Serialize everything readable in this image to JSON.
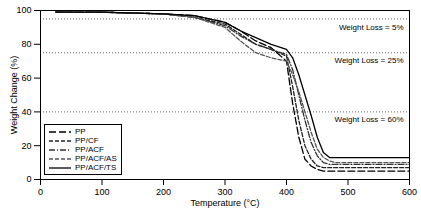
{
  "chart_data": {
    "type": "line",
    "x_label": "Temperature (°C)",
    "y_label": "Weight Change (%)",
    "xlim": [
      0,
      600
    ],
    "xticks": [
      0,
      100,
      200,
      300,
      400,
      500,
      600
    ],
    "ylim": [
      0,
      100
    ],
    "yticks": [
      0,
      20,
      40,
      60,
      80,
      100
    ],
    "grid": false,
    "legend": "bottom-left",
    "x": [
      25,
      100,
      200,
      250,
      300,
      325,
      350,
      375,
      400,
      410,
      420,
      430,
      440,
      450,
      460,
      470,
      480,
      500,
      600
    ],
    "series": [
      {
        "name": "PP",
        "color": "#000000",
        "line_style": "longdash",
        "values": [
          99,
          99,
          98,
          97,
          93,
          88,
          82,
          78,
          70,
          45,
          25,
          12,
          8,
          6,
          5,
          5,
          5,
          5,
          5
        ]
      },
      {
        "name": "PP/CF",
        "color": "#222222",
        "line_style": "dashed",
        "values": [
          99,
          99,
          98,
          96,
          92,
          86,
          80,
          77,
          73,
          55,
          35,
          20,
          12,
          8,
          7,
          7,
          7,
          7,
          7
        ]
      },
      {
        "name": "PP/ACF",
        "color": "#333333",
        "line_style": "dashdot",
        "values": [
          99,
          99,
          98,
          96,
          91,
          85,
          80,
          77,
          74,
          65,
          50,
          35,
          22,
          14,
          10,
          9,
          9,
          9,
          9
        ]
      },
      {
        "name": "PP/ACF/AS",
        "color": "#555555",
        "line_style": "dashed",
        "values": [
          99,
          99,
          98,
          96,
          90,
          82,
          75,
          72,
          70,
          62,
          52,
          40,
          28,
          18,
          13,
          11,
          10,
          10,
          10
        ]
      },
      {
        "name": "PP/ACF/TS",
        "color": "#000000",
        "line_style": "solid",
        "values": [
          99,
          99,
          98,
          97,
          93,
          88,
          84,
          80,
          77,
          72,
          62,
          50,
          38,
          25,
          16,
          13,
          13,
          13,
          13
        ]
      }
    ],
    "annotations": [
      {
        "text": "Weight Loss = 5%",
        "y": 95
      },
      {
        "text": "Weight Loss = 25%",
        "y": 75
      },
      {
        "text": "Weight Loss = 60%",
        "y": 40
      }
    ]
  }
}
